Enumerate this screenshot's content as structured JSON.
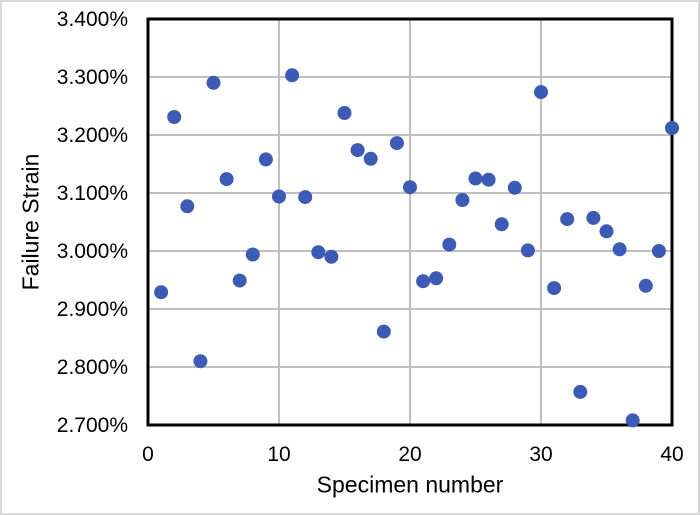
{
  "frame": {
    "background": "#FFFFFF",
    "border_color": "#D9D9D9"
  },
  "chart_data": {
    "type": "scatter",
    "title": "",
    "xlabel": "Specimen number",
    "ylabel": "Failure Strain",
    "xlim": [
      0,
      40
    ],
    "ylim": [
      2.7,
      3.4
    ],
    "x_ticks": [
      0,
      10,
      20,
      30,
      40
    ],
    "x_tick_labels": [
      "0",
      "10",
      "20",
      "30",
      "40"
    ],
    "y_ticks": [
      2.7,
      2.8,
      2.9,
      3.0,
      3.1,
      3.2,
      3.3,
      3.4
    ],
    "y_tick_labels": [
      "2.700%",
      "2.800%",
      "2.900%",
      "3.000%",
      "3.100%",
      "3.200%",
      "3.300%",
      "3.400%"
    ],
    "grid": true,
    "legend": false,
    "x": [
      1,
      2,
      3,
      4,
      5,
      6,
      7,
      8,
      9,
      10,
      11,
      12,
      13,
      14,
      15,
      16,
      17,
      18,
      19,
      20,
      21,
      22,
      23,
      24,
      25,
      26,
      27,
      28,
      29,
      30,
      31,
      32,
      33,
      34,
      35,
      36,
      37,
      38,
      39,
      40
    ],
    "y_percent": [
      2.929,
      3.231,
      3.077,
      2.81,
      3.29,
      3.124,
      2.949,
      2.994,
      3.158,
      3.094,
      3.303,
      3.093,
      2.998,
      2.99,
      3.238,
      3.174,
      3.159,
      2.861,
      3.186,
      3.11,
      2.948,
      2.953,
      3.011,
      3.088,
      3.125,
      3.123,
      3.046,
      3.109,
      3.001,
      3.274,
      2.936,
      3.055,
      2.757,
      3.057,
      3.034,
      3.003,
      2.708,
      2.94,
      3.0,
      3.212
    ],
    "marker_color": "#3B5BB5",
    "marker_radius_px": 7,
    "gridline_color": "#BFBFBF",
    "axis_line_color": "#000000",
    "text_color": "#000000",
    "tick_font_size_px": 21,
    "axis_title_font_size_px": 23
  }
}
